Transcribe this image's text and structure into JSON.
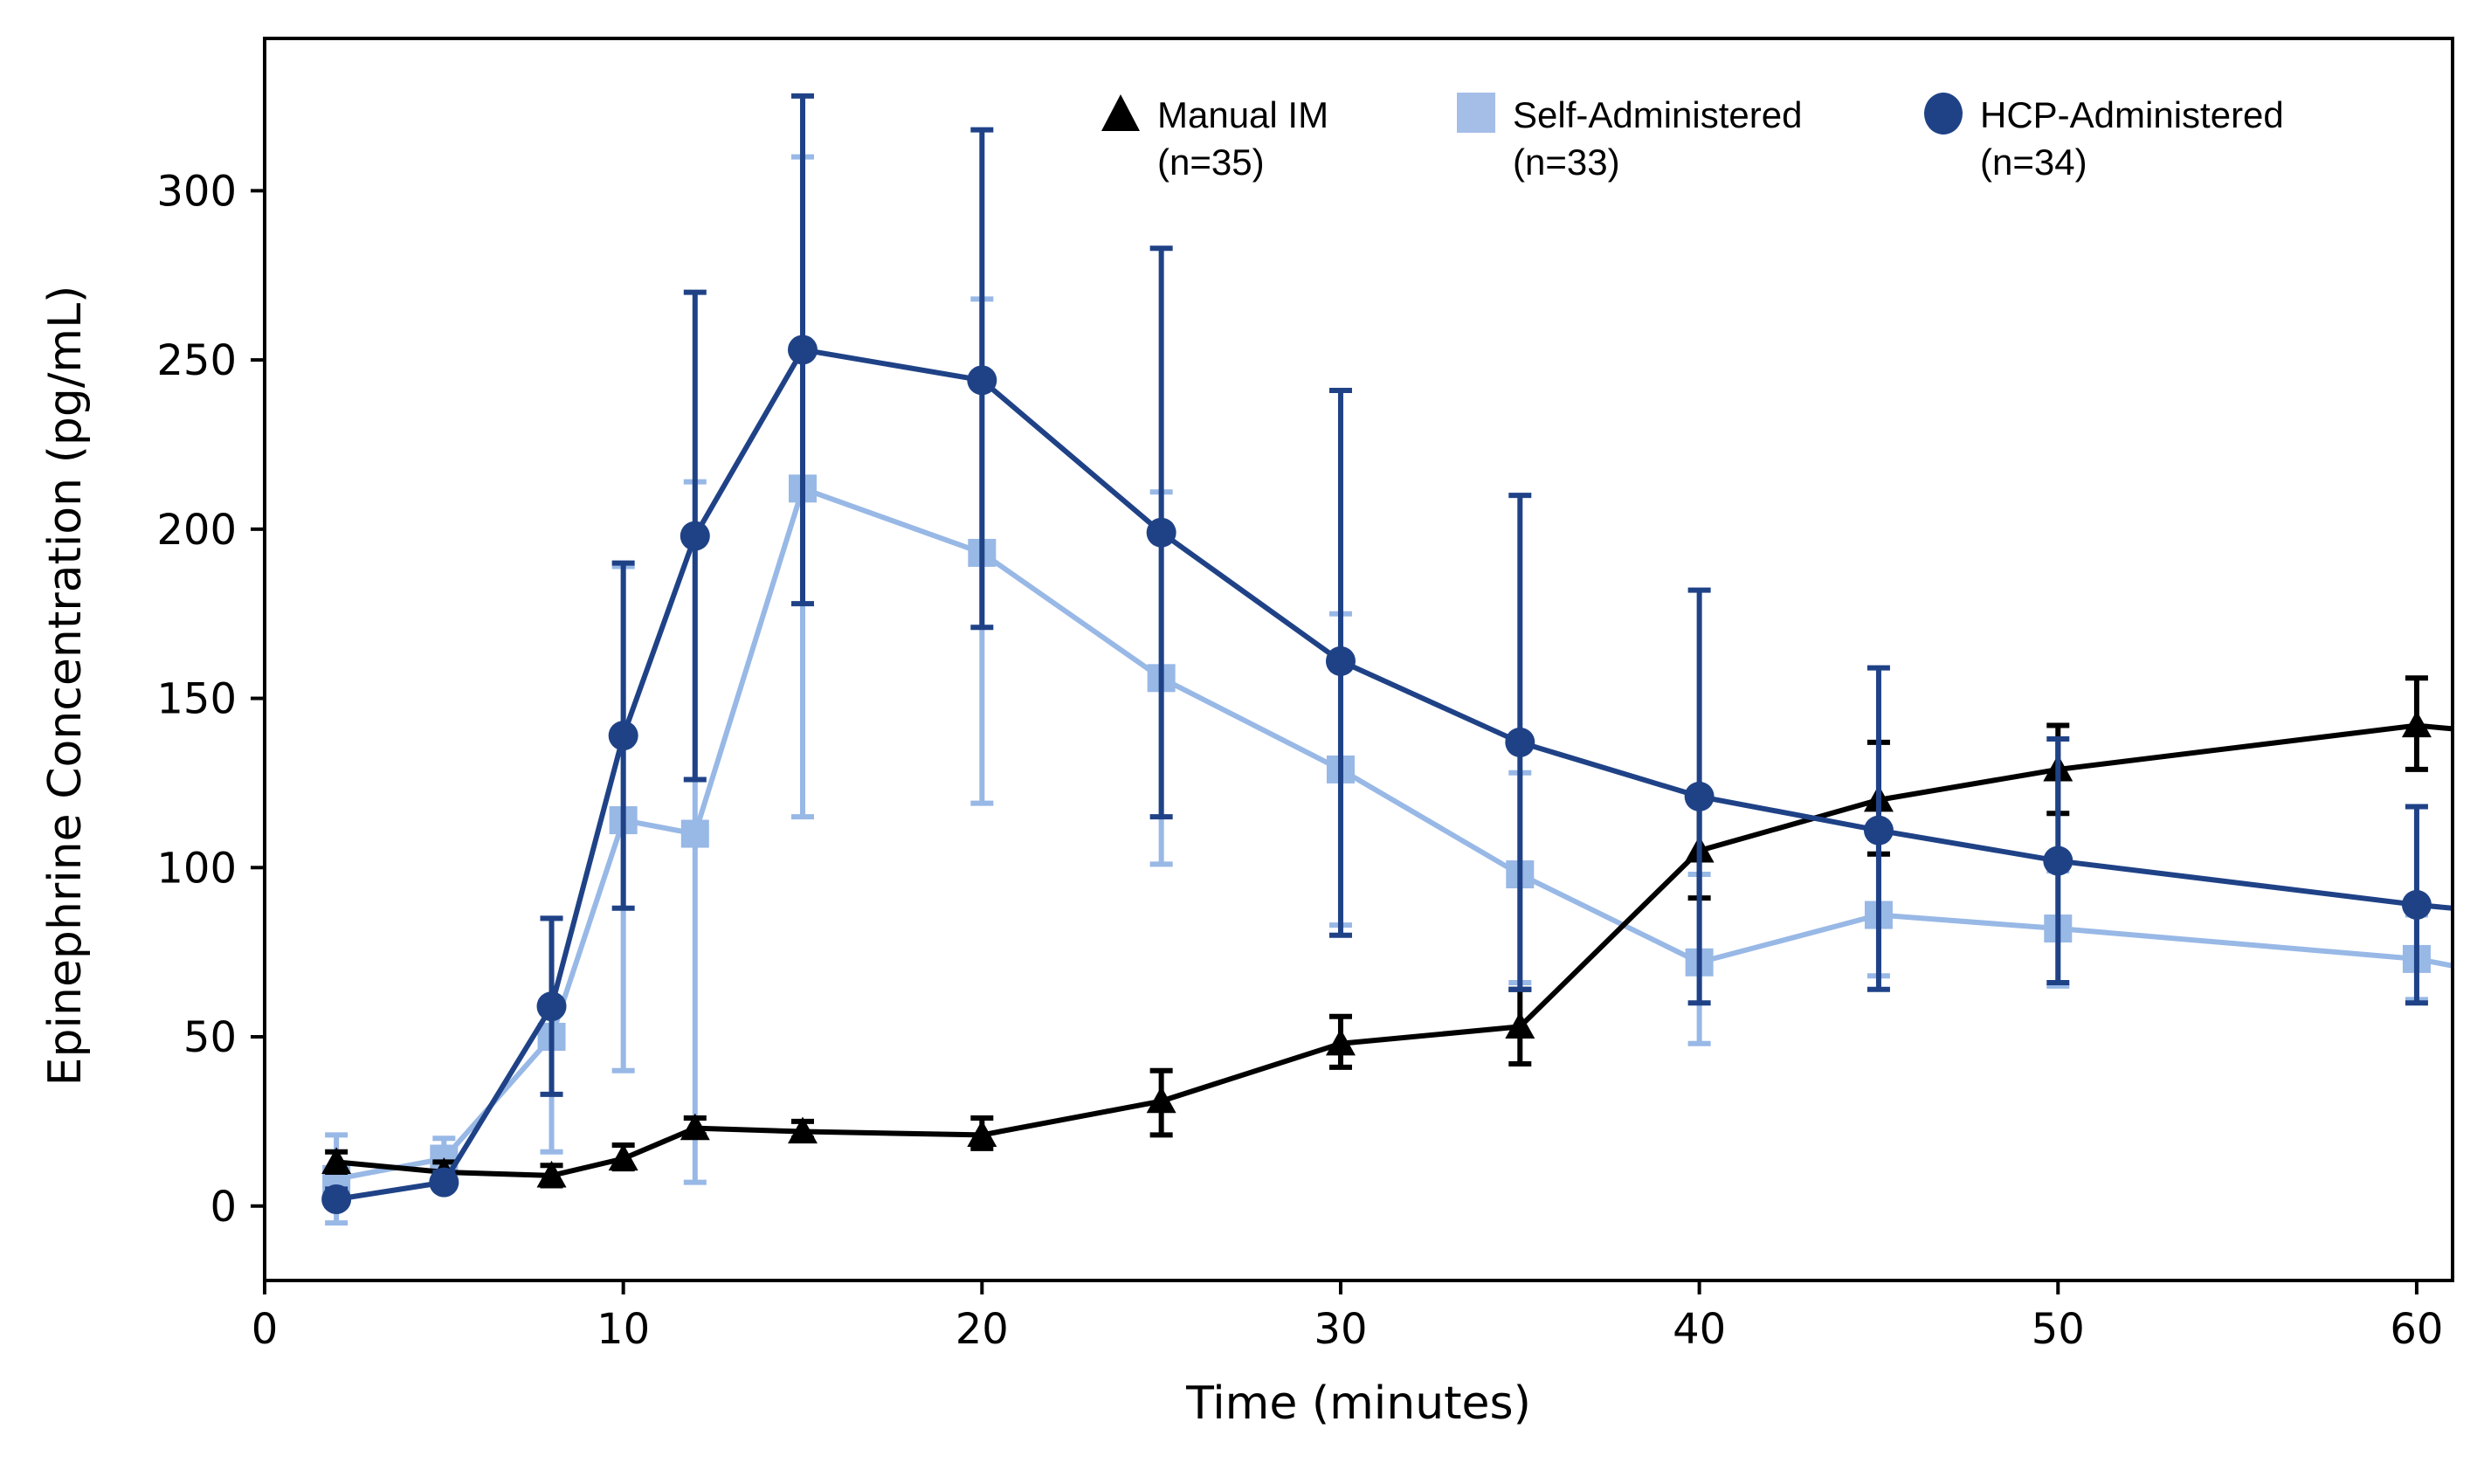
{
  "chart_data": {
    "type": "line",
    "title": "",
    "xlabel": "Time (minutes)",
    "ylabel": "Epinephrine Concentration (pg/mL)",
    "xlim": [
      0,
      61
    ],
    "ylim": [
      -22,
      345
    ],
    "xticks": [
      0,
      10,
      20,
      30,
      40,
      50,
      60
    ],
    "yticks": [
      0,
      50,
      100,
      150,
      200,
      250,
      300
    ],
    "grid": false,
    "legend_position": "top-right",
    "series": [
      {
        "name": "Manual IM",
        "n_label": "(n=35)",
        "marker": "triangle",
        "color": "#000000",
        "x": [
          2,
          5,
          8,
          10,
          12,
          15,
          20,
          25,
          30,
          35,
          40,
          45,
          50,
          60
        ],
        "y": [
          13,
          10,
          9,
          14,
          23,
          22,
          21,
          31,
          48,
          53,
          105,
          120,
          129,
          142
        ],
        "err_low": [
          10,
          8,
          6,
          11,
          21,
          20,
          17,
          21,
          41,
          42,
          91,
          104,
          116,
          129
        ],
        "err_high": [
          16,
          13,
          12,
          18,
          26,
          25,
          26,
          40,
          56,
          64,
          120,
          137,
          142,
          156
        ],
        "extends_to": [
          61,
          141
        ]
      },
      {
        "name": "Self-Administered",
        "n_label": "(n=33)",
        "marker": "square",
        "color": "#98B8E6",
        "x": [
          2,
          5,
          8,
          10,
          12,
          15,
          20,
          25,
          30,
          35,
          40,
          45,
          50,
          60
        ],
        "y": [
          8,
          14,
          50,
          114,
          110,
          212,
          193,
          156,
          129,
          98,
          72,
          86,
          82,
          73
        ],
        "err_low": [
          -5,
          8,
          16,
          40,
          7,
          115,
          119,
          101,
          83,
          66,
          48,
          68,
          65,
          61
        ],
        "err_high": [
          21,
          20,
          85,
          189,
          214,
          310,
          268,
          211,
          175,
          128,
          98,
          104,
          99,
          86
        ],
        "extends_to": [
          61,
          71
        ]
      },
      {
        "name": "HCP-Administered",
        "n_label": "(n=34)",
        "marker": "circle",
        "color": "#1F4287",
        "x": [
          2,
          5,
          8,
          10,
          12,
          15,
          20,
          25,
          30,
          35,
          40,
          45,
          50,
          60
        ],
        "y": [
          2,
          7,
          59,
          139,
          198,
          253,
          244,
          199,
          161,
          137,
          121,
          111,
          102,
          89
        ],
        "err_low": [
          0,
          5,
          33,
          88,
          126,
          178,
          171,
          115,
          80,
          64,
          60,
          64,
          66,
          60
        ],
        "err_high": [
          5,
          10,
          85,
          190,
          270,
          328,
          318,
          283,
          241,
          210,
          182,
          159,
          138,
          118
        ],
        "extends_to": [
          61,
          88
        ]
      }
    ]
  }
}
